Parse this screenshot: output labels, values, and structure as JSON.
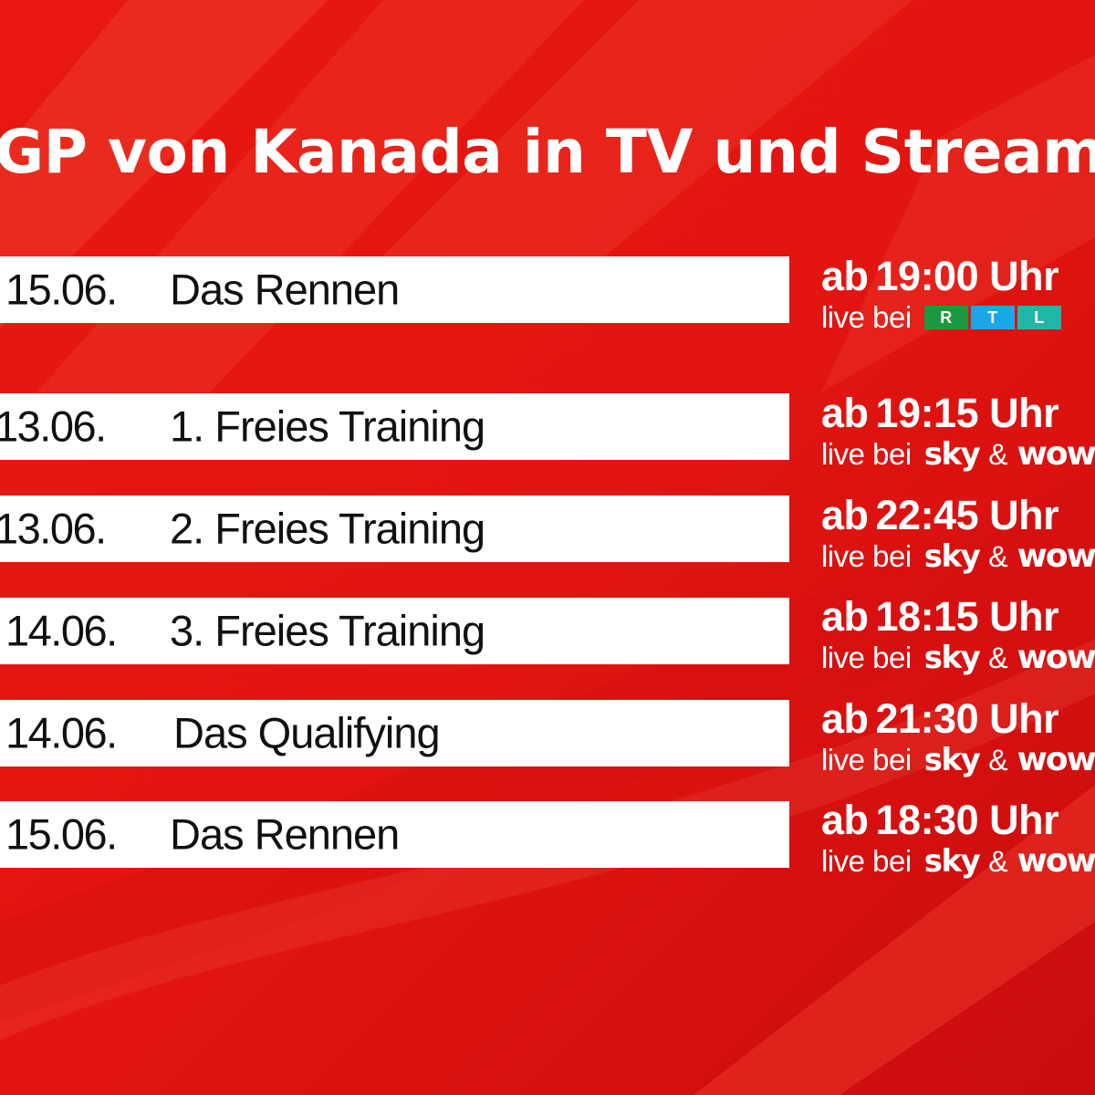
{
  "title": "GP von Kanada in TV und Stream",
  "colors": {
    "background": "#e3110f",
    "row_background": "#ffffff",
    "text_light": "#ffffff",
    "text_dark": "#111111",
    "rtl_r": "#1a9a3e",
    "rtl_t": "#1aa7e8",
    "rtl_l": "#20b6a8"
  },
  "rtl_row": {
    "date": "15.06.",
    "event": "Das Rennen",
    "time_prefix": "ab",
    "time": "19:00 Uhr",
    "live_prefix": "live bei",
    "broadcaster": {
      "name": "RTL",
      "letters": [
        "R",
        "T",
        "L"
      ]
    }
  },
  "schedule": [
    {
      "date": "13.06.",
      "event": "1. Freies Training",
      "time_prefix": "ab",
      "time": "19:15 Uhr",
      "live_prefix": "live bei",
      "broadcaster_1": "sky",
      "separator": "&",
      "broadcaster_2": "wow"
    },
    {
      "date": "13.06.",
      "event": "2. Freies Training",
      "time_prefix": "ab",
      "time": "22:45 Uhr",
      "live_prefix": "live bei",
      "broadcaster_1": "sky",
      "separator": "&",
      "broadcaster_2": "wow"
    },
    {
      "date": "14.06.",
      "event": "3. Freies Training",
      "time_prefix": "ab",
      "time": "18:15 Uhr",
      "live_prefix": "live bei",
      "broadcaster_1": "sky",
      "separator": "&",
      "broadcaster_2": "wow"
    },
    {
      "date": "14.06.",
      "event": "Das Qualifying",
      "time_prefix": "ab",
      "time": "21:30 Uhr",
      "live_prefix": "live bei",
      "broadcaster_1": "sky",
      "separator": "&",
      "broadcaster_2": "wow"
    },
    {
      "date": "15.06.",
      "event": "Das Rennen",
      "time_prefix": "ab",
      "time": "18:30 Uhr",
      "live_prefix": "live bei",
      "broadcaster_1": "sky",
      "separator": "&",
      "broadcaster_2": "wow"
    }
  ]
}
